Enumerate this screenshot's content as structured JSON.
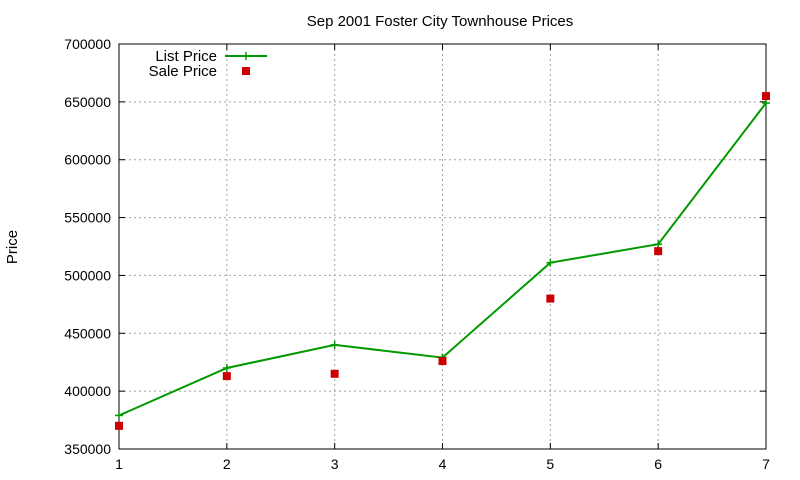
{
  "chart_data": {
    "type": "line",
    "title": "Sep 2001 Foster City Townhouse Prices",
    "xlabel": "",
    "ylabel": "Price",
    "x": [
      1,
      2,
      3,
      4,
      5,
      6,
      7
    ],
    "xlim": [
      1,
      7
    ],
    "ylim": [
      350000,
      700000
    ],
    "xticks": [
      "1",
      "2",
      "3",
      "4",
      "5",
      "6",
      "7"
    ],
    "yticks": [
      "350000",
      "400000",
      "450000",
      "500000",
      "550000",
      "600000",
      "650000",
      "700000"
    ],
    "grid": true,
    "legend_position": "top-left",
    "series": [
      {
        "name": "List Price",
        "style": "lines+crosses",
        "color": "#009900",
        "values": [
          379000,
          420000,
          440000,
          429000,
          511000,
          527000,
          649000
        ]
      },
      {
        "name": "Sale Price",
        "style": "squares",
        "color": "#cc0000",
        "values": [
          370000,
          413000,
          415000,
          426000,
          480000,
          521000,
          655000
        ]
      }
    ]
  }
}
